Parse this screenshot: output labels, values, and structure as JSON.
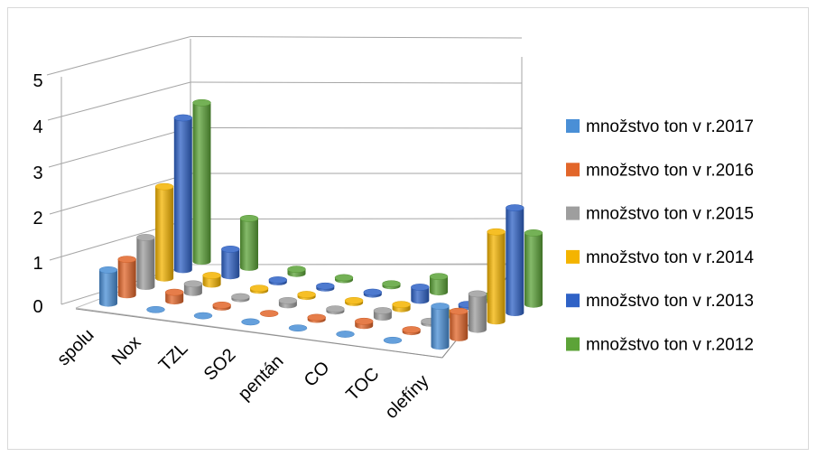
{
  "chart_data": {
    "type": "bar",
    "subtype": "3d-cylinder-column",
    "ylim": [
      0,
      5
    ],
    "yticks": [
      "0",
      "1",
      "2",
      "3",
      "4",
      "5"
    ],
    "grid": true,
    "legend_position": "right",
    "categories": [
      "spolu",
      "Nox",
      "TZL",
      "SO2",
      "pentán",
      "CO",
      "TOC",
      "olefíny"
    ],
    "series": [
      {
        "name": "množstvo ton v r.2017",
        "color": "#4a8fd6",
        "values": [
          0.75,
          0.0,
          0.0,
          0.0,
          0.0,
          0.0,
          0.0,
          0.9
        ]
      },
      {
        "name": "množstvo ton v r.2016",
        "color": "#e2662a",
        "values": [
          0.8,
          0.2,
          0.05,
          0.0,
          0.05,
          0.1,
          0.05,
          0.6
        ]
      },
      {
        "name": "množstvo ton v r.2015",
        "color": "#9e9e9e",
        "values": [
          1.1,
          0.2,
          0.05,
          0.1,
          0.05,
          0.15,
          0.05,
          0.8
        ]
      },
      {
        "name": "množstvo ton v r.2014",
        "color": "#f4b400",
        "values": [
          2.05,
          0.2,
          0.05,
          0.05,
          0.05,
          0.1,
          0.05,
          2.0
        ]
      },
      {
        "name": "množstvo ton v r.2013",
        "color": "#2f62c6",
        "values": [
          3.4,
          0.6,
          0.05,
          0.05,
          0.05,
          0.3,
          0.05,
          2.35
        ]
      },
      {
        "name": "množstvo ton v r.2012",
        "color": "#5ca338",
        "values": [
          3.55,
          1.1,
          0.1,
          0.05,
          0.05,
          0.35,
          0.05,
          1.6
        ]
      }
    ]
  }
}
